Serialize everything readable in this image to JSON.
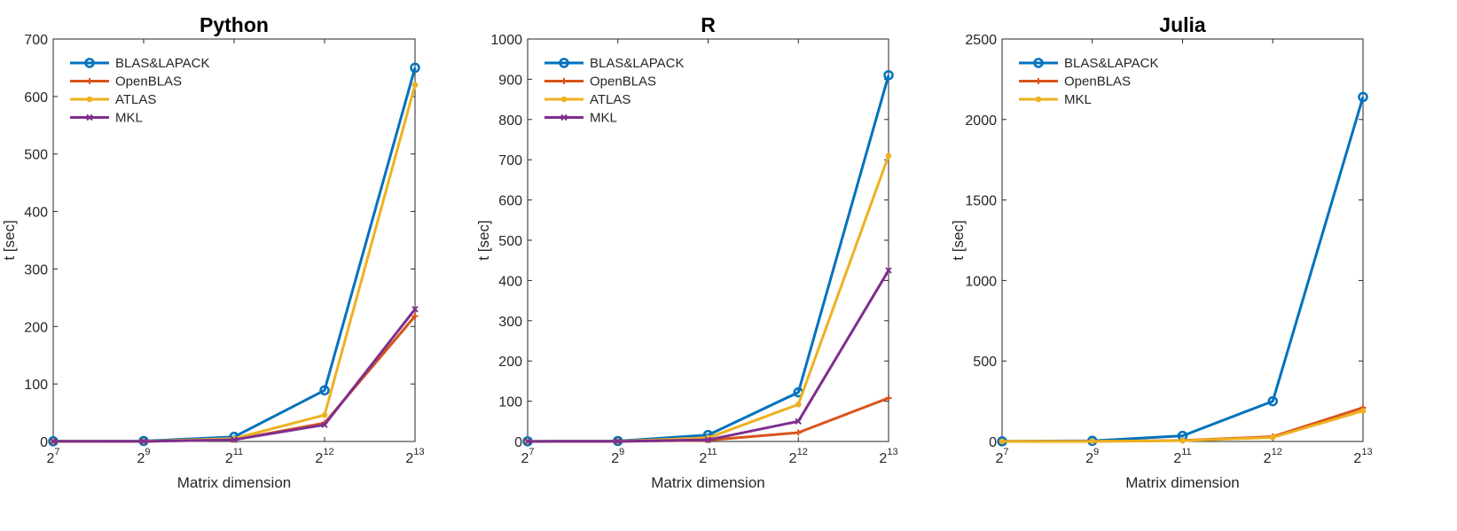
{
  "colors": {
    "BLAS&LAPACK": "#0072BD",
    "OpenBLAS": "#D95319",
    "ATLAS": "#EDB120",
    "MKL_python_r": "#7E2F8E",
    "MKL_julia": "#EDB120"
  },
  "chart_data": [
    {
      "type": "line",
      "title": "Python",
      "xlabel": "Matrix dimension",
      "ylabel": "t [sec]",
      "categories": [
        "2^7",
        "2^9",
        "2^11",
        "2^12",
        "2^13"
      ],
      "x_ticks": [
        {
          "base": "2",
          "exp": "7"
        },
        {
          "base": "2",
          "exp": "9"
        },
        {
          "base": "2",
          "exp": "11"
        },
        {
          "base": "2",
          "exp": "12"
        },
        {
          "base": "2",
          "exp": "13"
        }
      ],
      "ylim": [
        0,
        700
      ],
      "y_ticks": [
        0,
        100,
        200,
        300,
        400,
        500,
        600,
        700
      ],
      "legend_position": "top-left",
      "series": [
        {
          "name": "BLAS&LAPACK",
          "values": [
            0.3,
            0.8,
            8,
            89,
            650
          ],
          "color": "#0072BD",
          "marker": "circle"
        },
        {
          "name": "OpenBLAS",
          "values": [
            0.1,
            0.2,
            3,
            32,
            218
          ],
          "color": "#D95319",
          "marker": "plus"
        },
        {
          "name": "ATLAS",
          "values": [
            0.1,
            0.3,
            5,
            46,
            620
          ],
          "color": "#EDB120",
          "marker": "dot"
        },
        {
          "name": "MKL",
          "values": [
            0.1,
            0.2,
            3,
            29,
            230
          ],
          "color": "#7E2F8E",
          "marker": "x"
        }
      ]
    },
    {
      "type": "line",
      "title": "R",
      "xlabel": "Matrix dimension",
      "ylabel": "t [sec]",
      "categories": [
        "2^7",
        "2^9",
        "2^11",
        "2^12",
        "2^13"
      ],
      "x_ticks": [
        {
          "base": "2",
          "exp": "7"
        },
        {
          "base": "2",
          "exp": "9"
        },
        {
          "base": "2",
          "exp": "11"
        },
        {
          "base": "2",
          "exp": "12"
        },
        {
          "base": "2",
          "exp": "13"
        }
      ],
      "ylim": [
        0,
        1000
      ],
      "y_ticks": [
        0,
        100,
        200,
        300,
        400,
        500,
        600,
        700,
        800,
        900,
        1000
      ],
      "legend_position": "top-left",
      "series": [
        {
          "name": "BLAS&LAPACK",
          "values": [
            0.4,
            1.2,
            16,
            122,
            910
          ],
          "color": "#0072BD",
          "marker": "circle"
        },
        {
          "name": "OpenBLAS",
          "values": [
            0.1,
            0.2,
            3,
            22,
            108
          ],
          "color": "#D95319",
          "marker": "plus"
        },
        {
          "name": "ATLAS",
          "values": [
            0.2,
            0.6,
            9,
            92,
            710
          ],
          "color": "#EDB120",
          "marker": "dot"
        },
        {
          "name": "MKL",
          "values": [
            0.1,
            0.3,
            4,
            50,
            425
          ],
          "color": "#7E2F8E",
          "marker": "x"
        }
      ]
    },
    {
      "type": "line",
      "title": "Julia",
      "xlabel": "Matrix dimension",
      "ylabel": "t [sec]",
      "categories": [
        "2^7",
        "2^9",
        "2^11",
        "2^12",
        "2^13"
      ],
      "x_ticks": [
        {
          "base": "2",
          "exp": "7"
        },
        {
          "base": "2",
          "exp": "9"
        },
        {
          "base": "2",
          "exp": "11"
        },
        {
          "base": "2",
          "exp": "12"
        },
        {
          "base": "2",
          "exp": "13"
        }
      ],
      "ylim": [
        0,
        2500
      ],
      "y_ticks": [
        0,
        500,
        1000,
        1500,
        2000,
        2500
      ],
      "legend_position": "top-left",
      "series": [
        {
          "name": "BLAS&LAPACK",
          "values": [
            1,
            4,
            35,
            250,
            2140
          ],
          "color": "#0072BD",
          "marker": "circle"
        },
        {
          "name": "OpenBLAS",
          "values": [
            0.3,
            0.8,
            6,
            30,
            210
          ],
          "color": "#D95319",
          "marker": "plus"
        },
        {
          "name": "MKL",
          "values": [
            0.3,
            0.7,
            5,
            25,
            190
          ],
          "color": "#EDB120",
          "marker": "dot"
        }
      ]
    }
  ]
}
